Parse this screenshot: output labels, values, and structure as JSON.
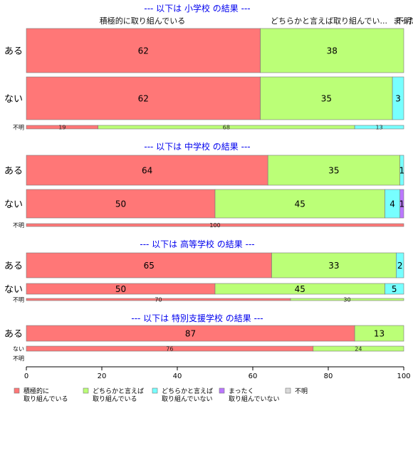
{
  "chart_data": {
    "type": "bar",
    "orientation": "horizontal",
    "stacked": true,
    "xlim": [
      0,
      100
    ],
    "xticks": [
      "0",
      "20",
      "40",
      "60",
      "80",
      "100"
    ],
    "top_labels": [
      "積極的に取り組んでいる",
      "どちらかと言えば取り組んでい...",
      "まった...",
      "不明"
    ],
    "legend": [
      {
        "label": [
          "積極的に",
          "取り組んでいる"
        ],
        "color": "#ff7777"
      },
      {
        "label": [
          "どちらかと言えば",
          "取り組んでいる"
        ],
        "color": "#bbff77"
      },
      {
        "label": [
          "どちらかと言えば",
          "取り組んでいない"
        ],
        "color": "#77ffff"
      },
      {
        "label": [
          "まったく",
          "取り組んでいない"
        ],
        "color": "#bb77ff"
      },
      {
        "label": [
          "不明"
        ],
        "color": "#d9d9d9"
      }
    ],
    "sections": [
      {
        "title": "--- 以下は 小学校 の結果 ---",
        "rows": [
          {
            "category": "ある",
            "values": [
              62,
              38,
              0,
              0,
              0
            ],
            "labels": [
              "62",
              "38",
              "",
              "",
              ""
            ]
          },
          {
            "category": "ない",
            "values": [
              62,
              35,
              3,
              0,
              0
            ],
            "labels": [
              "62",
              "35",
              "3",
              "",
              ""
            ]
          },
          {
            "category": "不明",
            "values": [
              19,
              68,
              13,
              0,
              0
            ],
            "labels": [
              "19",
              "68",
              "13",
              "",
              ""
            ]
          }
        ]
      },
      {
        "title": "--- 以下は 中学校 の結果 ---",
        "rows": [
          {
            "category": "ある",
            "values": [
              64,
              35,
              1,
              0,
              0
            ],
            "labels": [
              "64",
              "35",
              "1",
              "",
              ""
            ]
          },
          {
            "category": "ない",
            "values": [
              50,
              45,
              4,
              1,
              0
            ],
            "labels": [
              "50",
              "45",
              "4",
              "1",
              ""
            ]
          },
          {
            "category": "不明",
            "values": [
              100,
              0,
              0,
              0,
              0
            ],
            "labels": [
              "100",
              "",
              "",
              "",
              ""
            ]
          }
        ]
      },
      {
        "title": "--- 以下は 高等学校 の結果 ---",
        "rows": [
          {
            "category": "ある",
            "values": [
              65,
              33,
              2,
              0,
              0
            ],
            "labels": [
              "65",
              "33",
              "2",
              "",
              ""
            ]
          },
          {
            "category": "ない",
            "values": [
              50,
              45,
              5,
              0,
              0
            ],
            "labels": [
              "50",
              "45",
              "5",
              "",
              ""
            ]
          },
          {
            "category": "不明",
            "values": [
              70,
              30,
              0,
              0,
              0
            ],
            "labels": [
              "70",
              "30",
              "",
              "",
              ""
            ]
          }
        ]
      },
      {
        "title": "--- 以下は 特別支援学校 の結果 ---",
        "rows": [
          {
            "category": "ある",
            "values": [
              87,
              13,
              0,
              0,
              0
            ],
            "labels": [
              "87",
              "13",
              "",
              "",
              ""
            ]
          },
          {
            "category": "ない",
            "values": [
              76,
              24,
              0,
              0,
              0
            ],
            "labels": [
              "76",
              "24",
              "",
              "",
              ""
            ]
          },
          {
            "category": "不明",
            "values": [
              0,
              0,
              0,
              0,
              0
            ],
            "labels": [
              "",
              "",
              "",
              "",
              ""
            ]
          }
        ]
      }
    ]
  }
}
